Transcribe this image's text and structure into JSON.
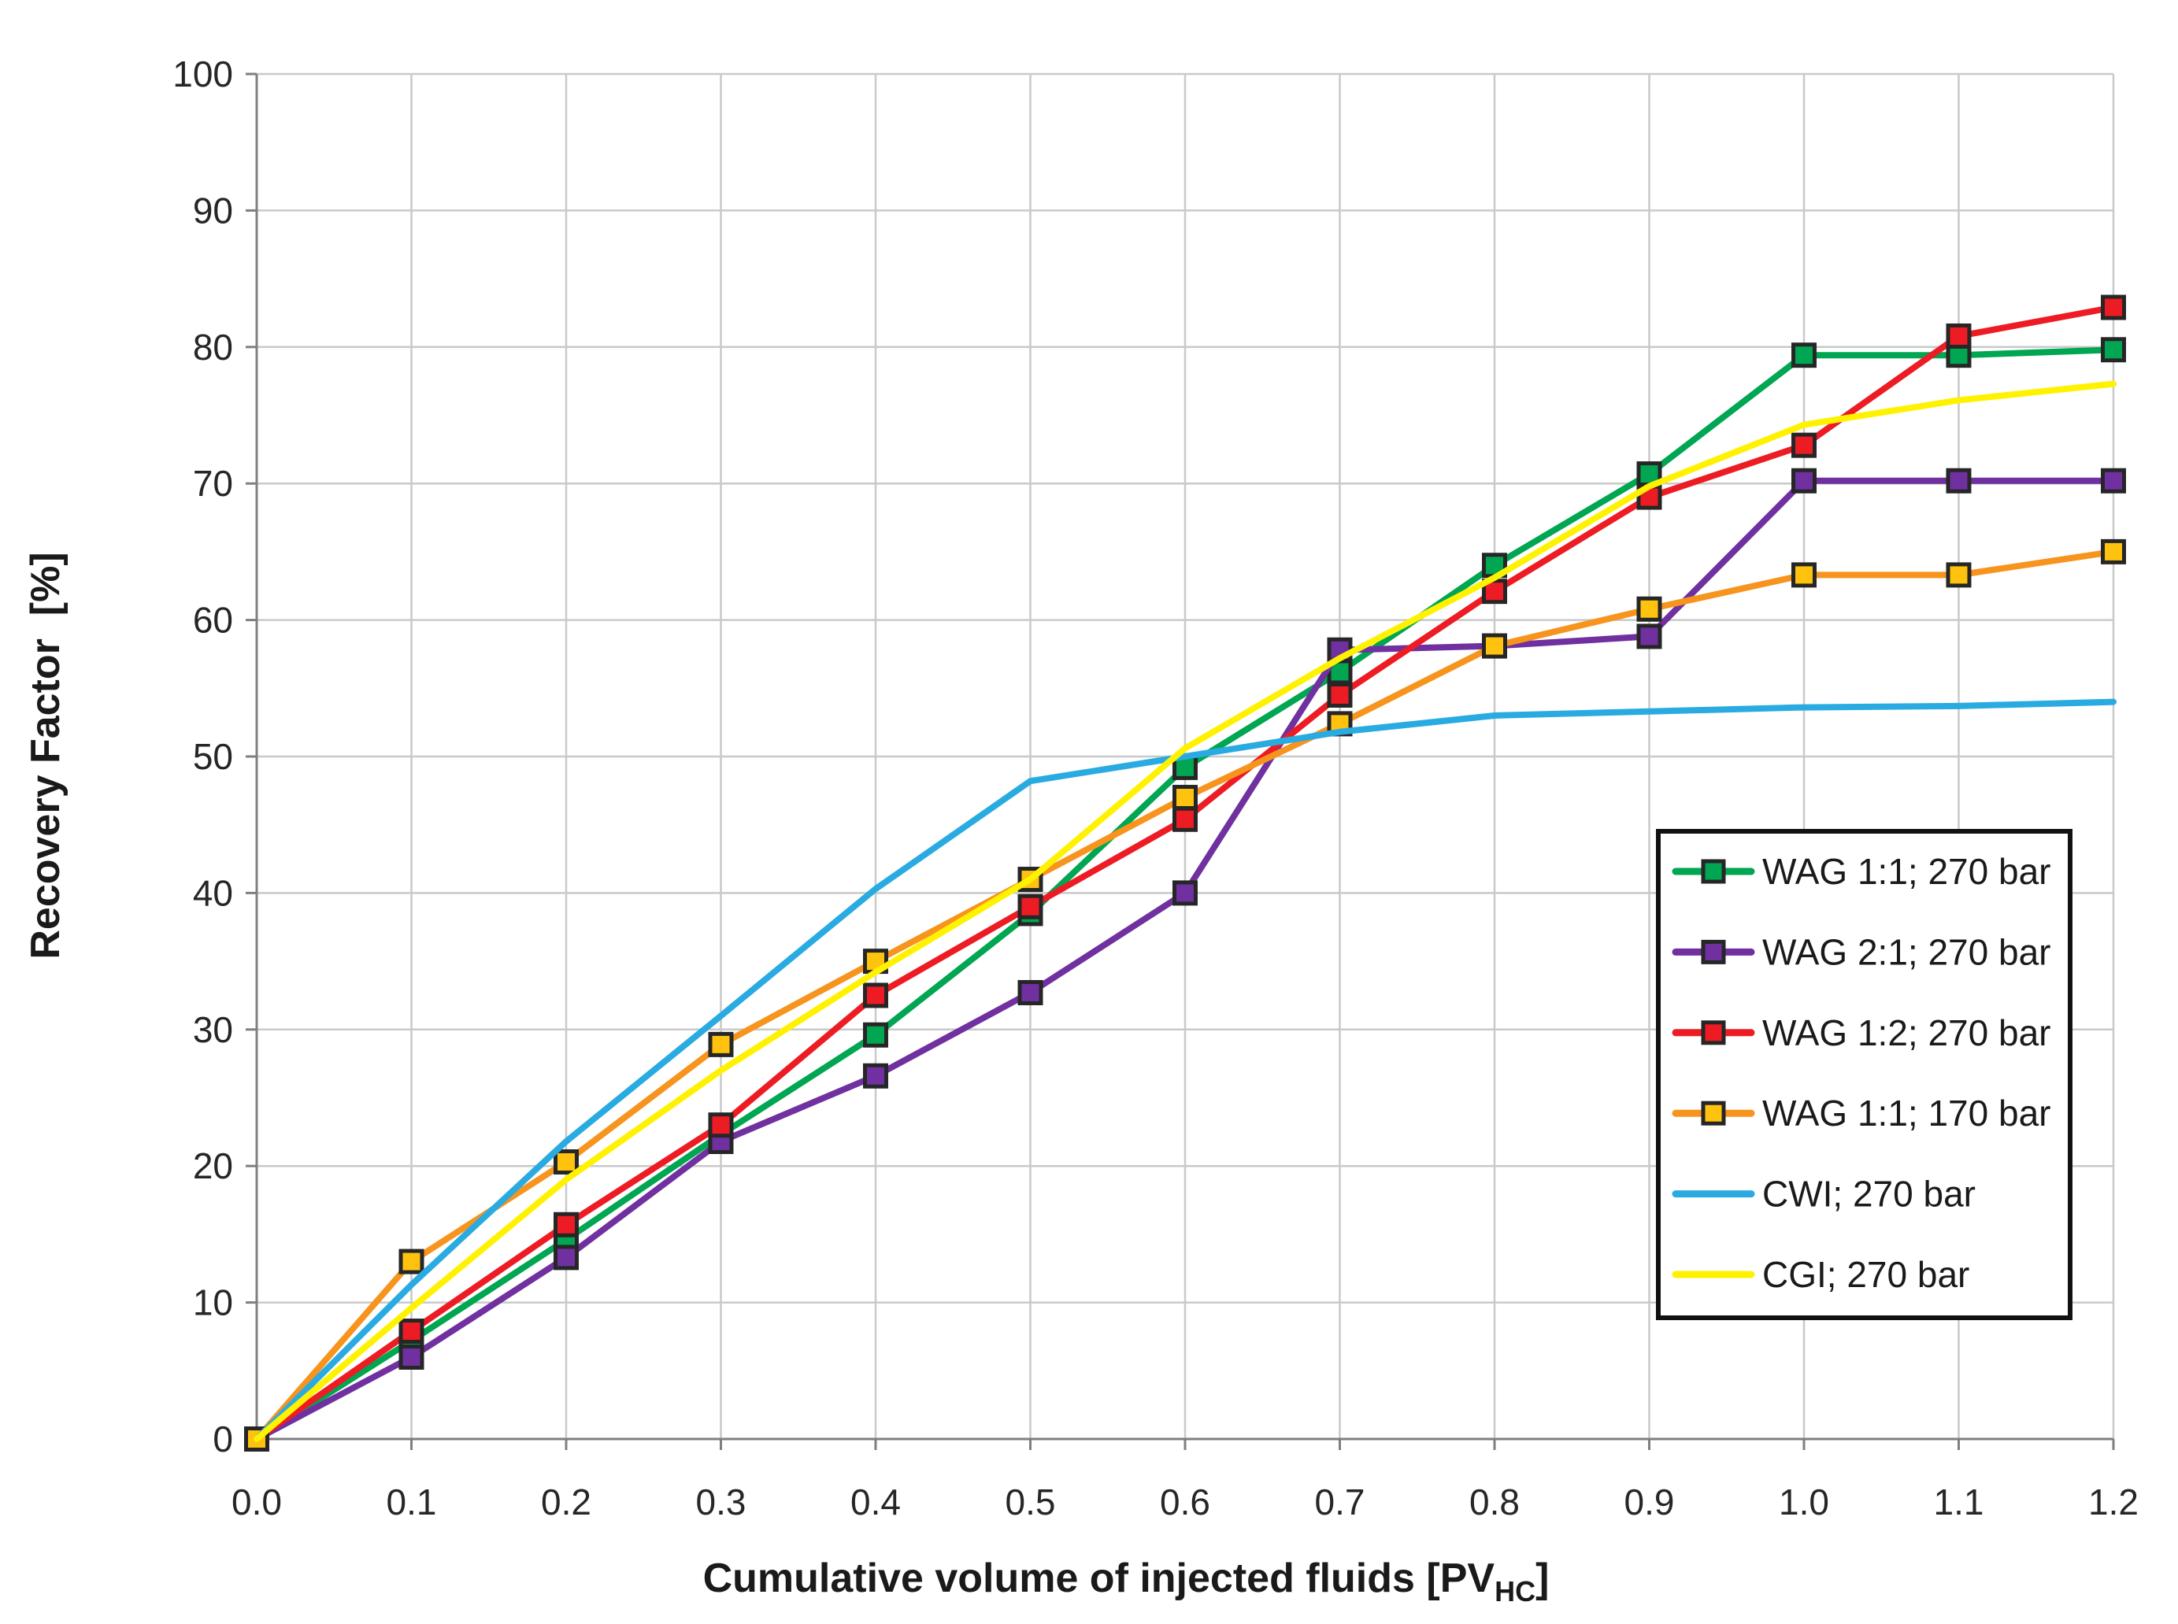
{
  "chart_data": {
    "type": "line",
    "title": "",
    "xlabel_pre": "Cumulative volume of injected fluids [PV",
    "xlabel_sub": "HC",
    "xlabel_post": "]",
    "ylabel": "Recovery Factor  [%]",
    "xlim": [
      0.0,
      1.2
    ],
    "ylim": [
      0,
      100
    ],
    "grid": true,
    "legend_position": "right-middle-box",
    "x_ticks": [
      0.0,
      0.1,
      0.2,
      0.3,
      0.4,
      0.5,
      0.6,
      0.7,
      0.8,
      0.9,
      1.0,
      1.1,
      1.2
    ],
    "x_tick_labels": [
      "0.0",
      "0.1",
      "0.2",
      "0.3",
      "0.4",
      "0.5",
      "0.6",
      "0.7",
      "0.8",
      "0.9",
      "1.0",
      "1.1",
      "1.2"
    ],
    "y_ticks": [
      0,
      10,
      20,
      30,
      40,
      50,
      60,
      70,
      80,
      90,
      100
    ],
    "y_tick_labels": [
      "0",
      "10",
      "20",
      "30",
      "40",
      "50",
      "60",
      "70",
      "80",
      "90",
      "100"
    ],
    "x": [
      0.0,
      0.1,
      0.2,
      0.3,
      0.4,
      0.5,
      0.6,
      0.7,
      0.8,
      0.9,
      1.0,
      1.1,
      1.2
    ],
    "series": [
      {
        "name": "WAG 1:1; 270 bar",
        "color": "#00A651",
        "marker": "square",
        "marker_fill": "#00A651",
        "values": [
          0,
          7.2,
          14.6,
          22.3,
          29.6,
          38.5,
          49.2,
          56.2,
          64.0,
          70.7,
          79.4,
          79.4,
          79.8
        ]
      },
      {
        "name": "WAG 2:1; 270 bar",
        "color": "#7030A0",
        "marker": "square",
        "marker_fill": "#7030A0",
        "values": [
          0,
          6.0,
          13.3,
          21.8,
          26.6,
          32.7,
          40.0,
          57.8,
          58.1,
          58.8,
          70.2,
          70.2,
          70.2
        ]
      },
      {
        "name": "WAG 1:2; 270 bar",
        "color": "#ED1C24",
        "marker": "square",
        "marker_fill": "#ED1C24",
        "values": [
          0,
          7.9,
          15.7,
          23.0,
          32.5,
          39.0,
          45.4,
          54.5,
          62.1,
          69.0,
          72.8,
          80.8,
          82.9
        ]
      },
      {
        "name": "WAG 1:1; 170 bar",
        "color": "#F7941D",
        "marker": "square",
        "marker_fill": "#FFC20E",
        "values": [
          0,
          13.0,
          20.3,
          28.9,
          35.0,
          41.0,
          47.0,
          52.4,
          58.1,
          60.8,
          63.3,
          63.3,
          65.0
        ]
      },
      {
        "name": "CWI; 270 bar",
        "color": "#29ABE2",
        "marker": "none",
        "marker_fill": "#29ABE2",
        "values": [
          0,
          11.3,
          21.8,
          31.0,
          40.3,
          48.2,
          50.0,
          51.8,
          53.0,
          53.3,
          53.6,
          53.7,
          54.0
        ]
      },
      {
        "name": "CGI; 270 bar",
        "color": "#FFF200",
        "marker": "none",
        "marker_fill": "#FFF200",
        "values": [
          0,
          9.6,
          19.0,
          27.0,
          34.2,
          41.0,
          50.6,
          57.2,
          63.1,
          69.8,
          74.3,
          76.1,
          77.3
        ]
      }
    ],
    "colors": {
      "gridline": "#C9C9C9",
      "axis_line": "#7F7F7F",
      "tick_text": "#262626",
      "axis_title_text": "#1A1A1A",
      "legend_border": "#111111",
      "legend_background": "#FFFFFF",
      "marker_outline": "#262626"
    }
  }
}
